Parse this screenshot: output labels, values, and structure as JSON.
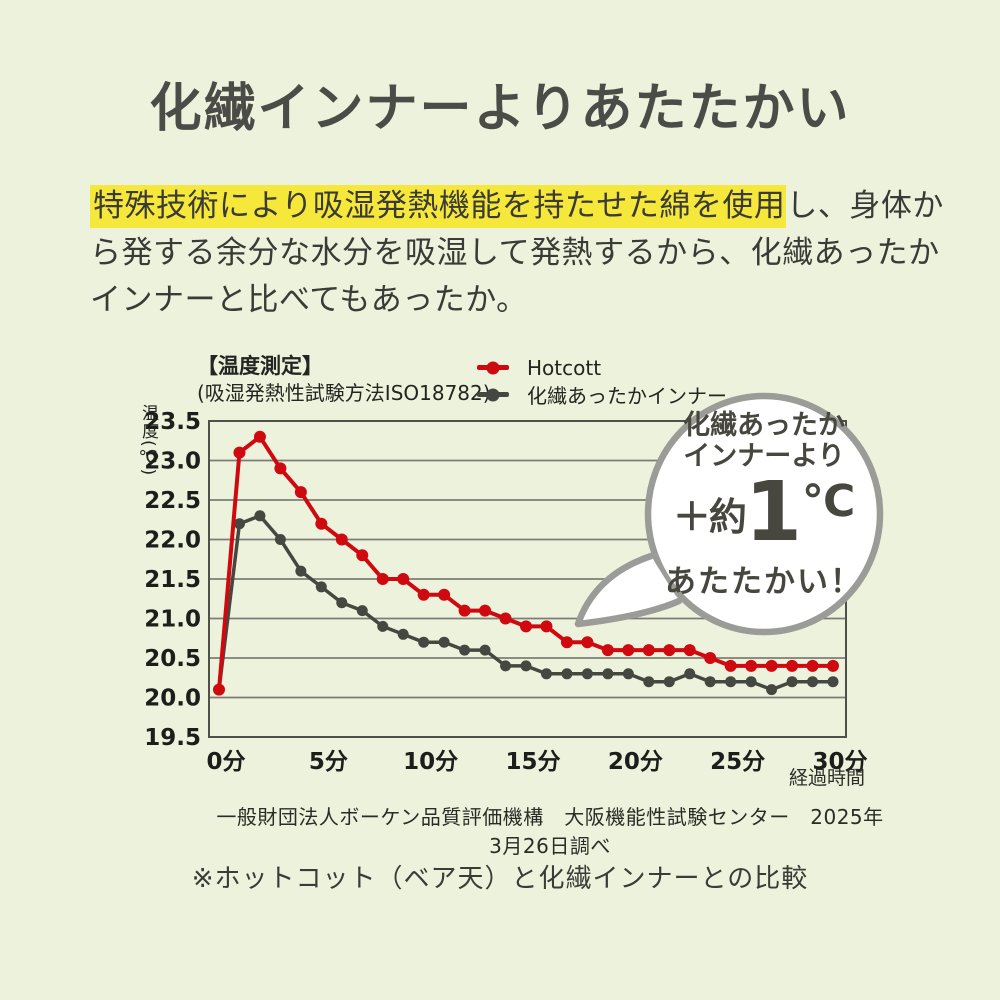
{
  "page": {
    "title": "化繊インナーよりあたたかい",
    "description": {
      "highlight": "特殊技術により吸湿発熱機能を持たせた綿を使用",
      "rest_line1": "し、身体か",
      "line2": "ら発する余分な水分を吸湿して発熱するから、化繊あったか",
      "line3": "インナーと比べてもあったか。"
    },
    "footer": "一般財団法人ボーケン品質評価機構　大阪機能性試験センター　2025年3月26日調べ",
    "note": "※ホットコット（ベア天）と化繊インナーとの比較"
  },
  "bubble": {
    "line1": "化繊あったか",
    "line2": "インナーより",
    "plus": "＋約",
    "value": "1",
    "unit": "℃",
    "line3": "あたたかい！"
  },
  "colors": {
    "background": "#edf2dc",
    "highlight_yellow": "#f6e73b",
    "hotcott_red": "#ce0a10",
    "synthetic_gray": "#474742",
    "bubble_border": "#9b9b97",
    "title_text": "#4b4b47"
  },
  "chart_data": {
    "type": "line",
    "title": "【温度測定】",
    "subtitle": "(吸湿発熱性試験方法ISO18782)",
    "ylabel": "温度(℃)",
    "xlabel": "経過時間",
    "ylim": [
      19.5,
      23.5
    ],
    "grid": true,
    "legend_position": "top-right",
    "x_unit": "分",
    "x": [
      0,
      1,
      2,
      3,
      4,
      5,
      6,
      7,
      8,
      9,
      10,
      11,
      12,
      13,
      14,
      15,
      16,
      17,
      18,
      19,
      20,
      21,
      22,
      23,
      24,
      25,
      26,
      27,
      28,
      29,
      30
    ],
    "x_ticks": [
      {
        "m": 0,
        "label": "0分"
      },
      {
        "m": 5,
        "label": "5分"
      },
      {
        "m": 10,
        "label": "10分"
      },
      {
        "m": 15,
        "label": "15分"
      },
      {
        "m": 20,
        "label": "20分"
      },
      {
        "m": 25,
        "label": "25分"
      },
      {
        "m": 30,
        "label": "30分"
      }
    ],
    "y_ticks": [
      23.5,
      23.0,
      22.5,
      22.0,
      21.5,
      21.0,
      20.5,
      20.0,
      19.5
    ],
    "series": [
      {
        "name": "Hotcott",
        "id": "hotcott",
        "color": "#ce0a10",
        "line_width": 4,
        "dot_radius": 6,
        "values": [
          20.1,
          23.1,
          23.3,
          22.9,
          22.6,
          22.2,
          22.0,
          21.8,
          21.5,
          21.5,
          21.3,
          21.3,
          21.1,
          21.1,
          21.0,
          20.9,
          20.9,
          20.7,
          20.7,
          20.6,
          20.6,
          20.6,
          20.6,
          20.6,
          20.5,
          20.4,
          20.4,
          20.4,
          20.4,
          20.4,
          20.4
        ]
      },
      {
        "name": "化繊あったかインナー",
        "id": "synthetic-inner",
        "color": "#474742",
        "line_width": 3.5,
        "dot_radius": 5.5,
        "values": [
          20.1,
          22.2,
          22.3,
          22.0,
          21.6,
          21.4,
          21.2,
          21.1,
          20.9,
          20.8,
          20.7,
          20.7,
          20.6,
          20.6,
          20.4,
          20.4,
          20.3,
          20.3,
          20.3,
          20.3,
          20.3,
          20.2,
          20.2,
          20.3,
          20.2,
          20.2,
          20.2,
          20.1,
          20.2,
          20.2,
          20.2
        ]
      }
    ]
  }
}
